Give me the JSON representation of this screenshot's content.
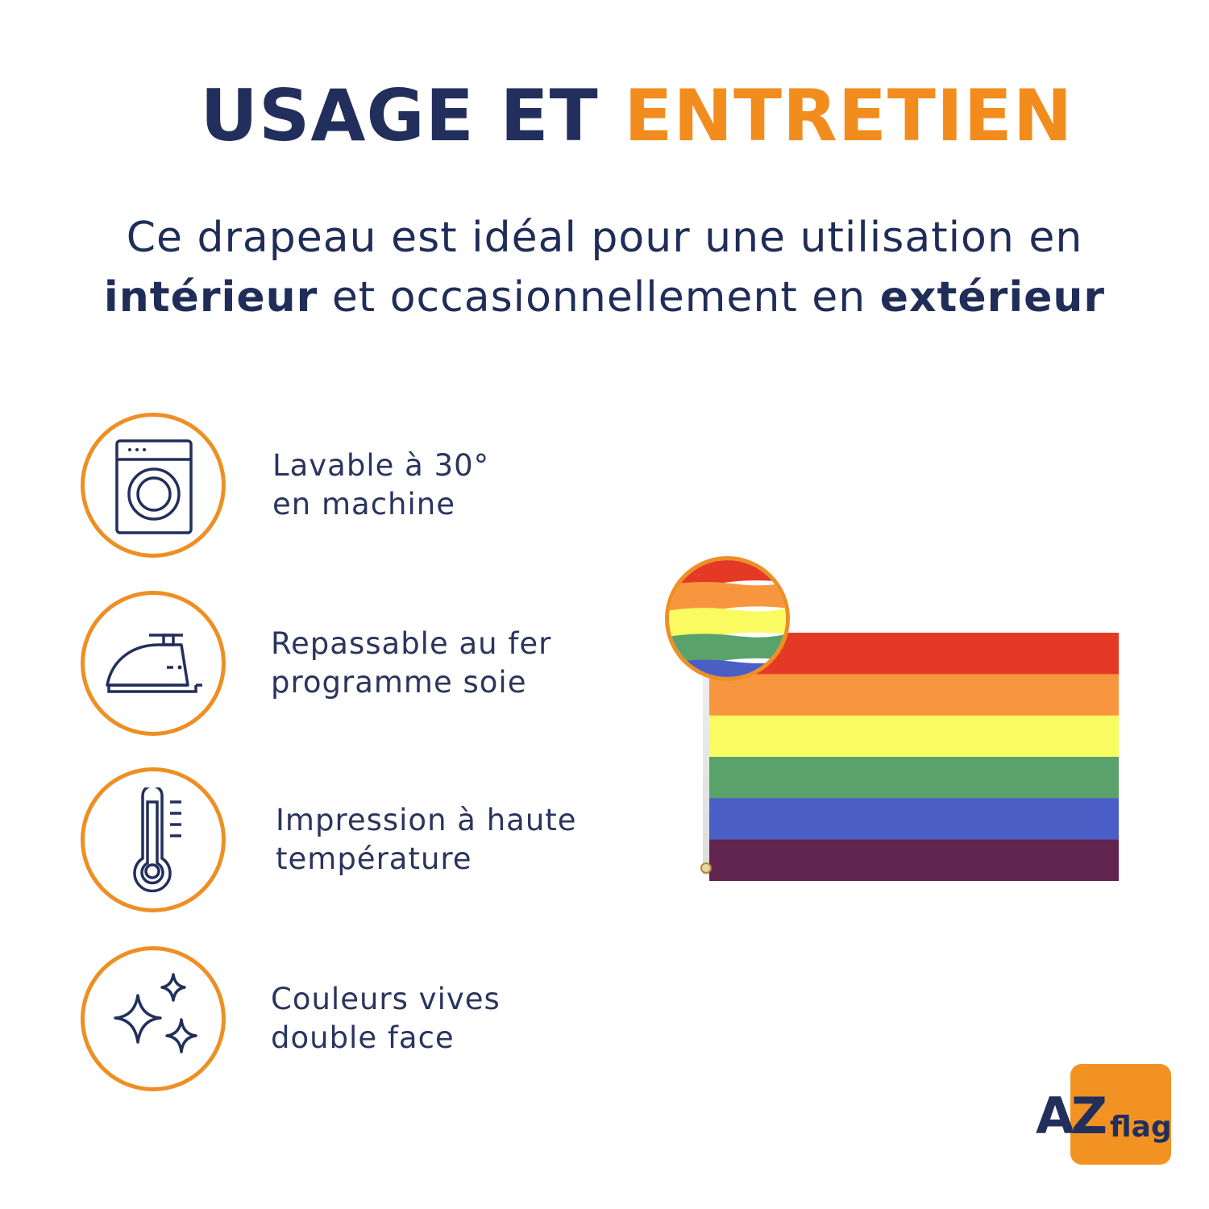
{
  "title": {
    "part_a": "USAGE ET",
    "part_b": "ENTRETIEN"
  },
  "intro": {
    "line1": "Ce drapeau est idéal pour une utilisation en",
    "bold1": "intérieur",
    "middle": "et occasionnellement en",
    "bold2": "extérieur"
  },
  "features": [
    {
      "icon": "washing-machine-icon",
      "line1": "Lavable à 30°",
      "line2": "en machine"
    },
    {
      "icon": "iron-icon",
      "line1": "Repassable au fer",
      "line2": "programme soie"
    },
    {
      "icon": "thermometer-icon",
      "line1": "Impression à haute",
      "line2": "température"
    },
    {
      "icon": "sparkle-icon",
      "line1": "Couleurs vives",
      "line2": "double face"
    }
  ],
  "colors": {
    "navy": "#222f5c",
    "orange": "#f28c1d",
    "flag_stripes": [
      "#e43a25",
      "#f7963f",
      "#f9fb61",
      "#5aa26b",
      "#4a5ec6",
      "#612451"
    ]
  },
  "logo": {
    "az": "AZ",
    "flag": "flag"
  }
}
